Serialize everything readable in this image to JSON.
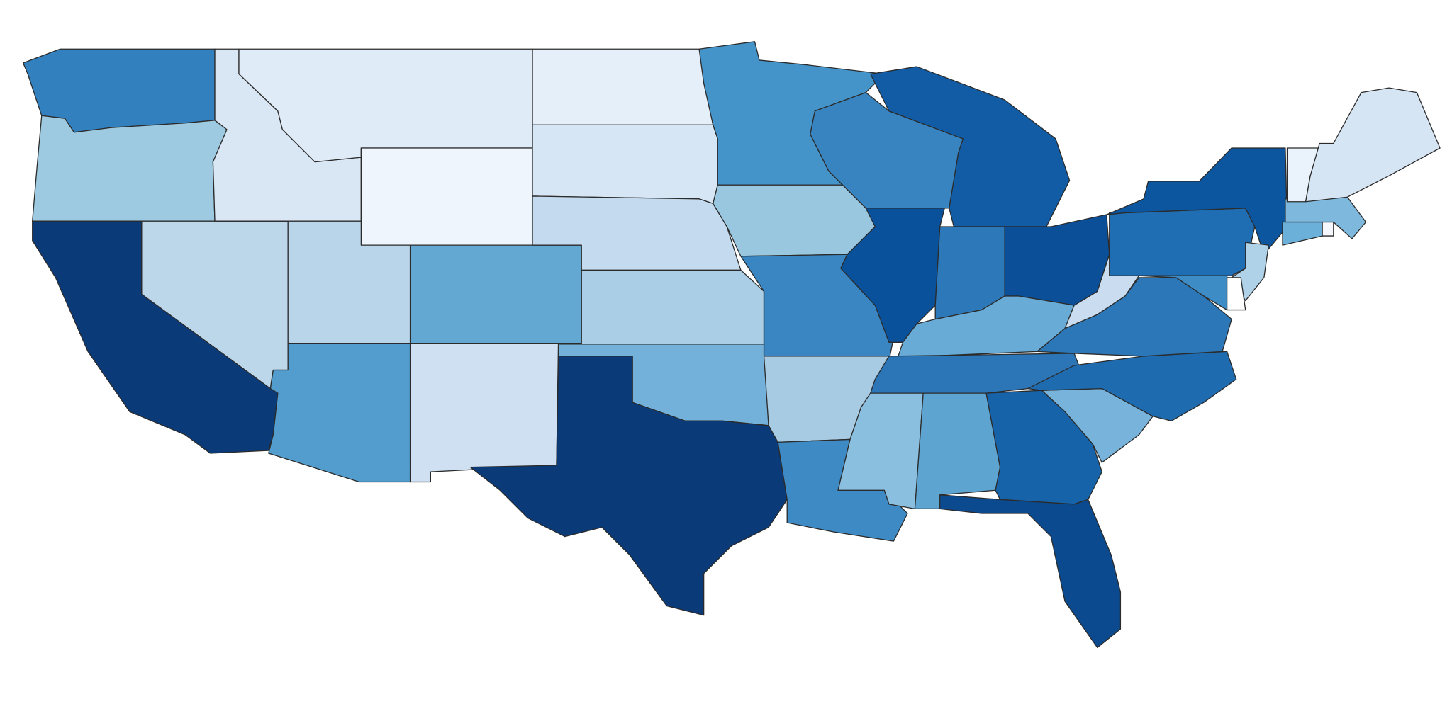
{
  "map": {
    "stroke": "#2b2b2b",
    "background": "#ffffff",
    "regions": [
      {
        "color": "#3380be"
      },
      {
        "color": "#9ecae1"
      },
      {
        "color": "#0b3a78"
      },
      {
        "color": "#bcd6ea"
      },
      {
        "color": "#d9e7f5"
      },
      {
        "color": "#dfebf7"
      },
      {
        "color": "#eef5fc"
      },
      {
        "color": "#b9d5ea"
      },
      {
        "color": "#529dce"
      },
      {
        "color": "#62a8d3"
      },
      {
        "color": "#cfe0f2"
      },
      {
        "color": "#e5eff9"
      },
      {
        "color": "#d7e6f4"
      },
      {
        "color": "#c4daee"
      },
      {
        "color": "#a9cee5"
      },
      {
        "color": "#74b1da"
      },
      {
        "color": "#0b3a78"
      },
      {
        "color": "#4594c9"
      },
      {
        "color": "#99c7e0"
      },
      {
        "color": "#3a86c2"
      },
      {
        "color": "#a6cbe3"
      },
      {
        "color": "#3d8ac4"
      },
      {
        "color": "#3884c0"
      },
      {
        "color": "#0a519b"
      },
      {
        "color": "#115ca5"
      },
      {
        "color": "#2d78b9"
      },
      {
        "color": "#0a4f98"
      },
      {
        "color": "#68abd6"
      },
      {
        "color": "#2c76b8"
      },
      {
        "color": "#8bbfdf"
      },
      {
        "color": "#5ea4d1"
      },
      {
        "color": "#1763aa"
      },
      {
        "color": "#0b4a8e"
      },
      {
        "color": "#77b3da"
      },
      {
        "color": "#1f6bb0"
      },
      {
        "color": "#2c77b8"
      },
      {
        "color": "#cadcef"
      },
      {
        "color": "#1f6db2"
      },
      {
        "color": "#0c56a0"
      },
      {
        "color": "#b0d2e8"
      },
      {
        "color": "#3d8cc6"
      },
      {
        "color": "#ffffff"
      },
      {
        "color": "#6ab0d8"
      },
      {
        "color": "#f4f8fd"
      },
      {
        "color": "#7eb9dd"
      },
      {
        "color": "#eaf2fb"
      },
      {
        "color": "#d6e5f4"
      }
    ]
  }
}
